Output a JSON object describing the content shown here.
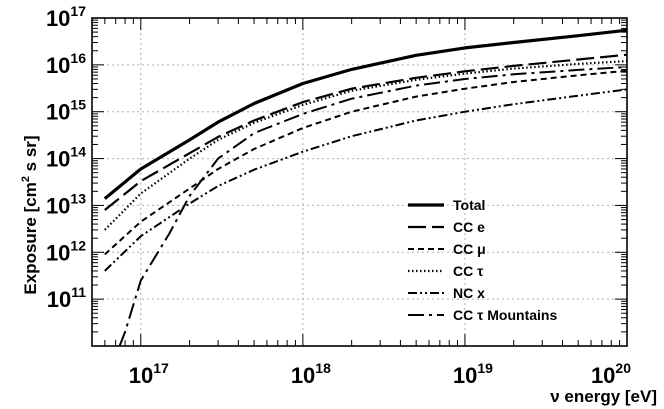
{
  "chart_data": {
    "type": "line",
    "xlabel": "ν energy [eV]",
    "ylabel_main": "Exposure [cm",
    "ylabel_sup": "2",
    "ylabel_tail": " s sr]",
    "x_scale": "log",
    "y_scale": "log",
    "xlim": [
      5e+16,
      1e+20
    ],
    "ylim": [
      10000000000.0,
      1e+17
    ],
    "grid": true,
    "legend_position": "bottom-right",
    "x_ticks": [
      {
        "base": "10",
        "exp": "17",
        "value": 1e+17
      },
      {
        "base": "10",
        "exp": "18",
        "value": 1e+18
      },
      {
        "base": "10",
        "exp": "19",
        "value": 1e+19
      },
      {
        "base": "10",
        "exp": "20",
        "value": 1e+20
      }
    ],
    "y_ticks": [
      {
        "base": "10",
        "exp": "11",
        "value": 100000000000.0
      },
      {
        "base": "10",
        "exp": "12",
        "value": 1000000000000.0
      },
      {
        "base": "10",
        "exp": "13",
        "value": 10000000000000.0
      },
      {
        "base": "10",
        "exp": "14",
        "value": 100000000000000.0
      },
      {
        "base": "10",
        "exp": "15",
        "value": 1000000000000000.0
      },
      {
        "base": "10",
        "exp": "16",
        "value": 1e+16
      },
      {
        "base": "10",
        "exp": "17",
        "value": 1e+17
      }
    ],
    "series": [
      {
        "name": "Total",
        "style": "solid",
        "x": [
          6e+16,
          1e+17,
          2e+17,
          3e+17,
          5e+17,
          1e+18,
          2e+18,
          5e+18,
          1e+19,
          2e+19,
          5e+19,
          1e+20
        ],
        "y": [
          14000000000000.0,
          60000000000000.0,
          250000000000000.0,
          600000000000000.0,
          1500000000000000.0,
          4000000000000000.0,
          8000000000000000.0,
          1.6e+16,
          2.3e+16,
          3e+16,
          4.2e+16,
          5.5e+16
        ]
      },
      {
        "name": "CC e",
        "style": "longdash",
        "x": [
          6e+16,
          1e+17,
          2e+17,
          3e+17,
          5e+17,
          1e+18,
          2e+18,
          5e+18,
          1e+19,
          2e+19,
          5e+19,
          1e+20
        ],
        "y": [
          8000000000000.0,
          33000000000000.0,
          130000000000000.0,
          290000000000000.0,
          650000000000000.0,
          1600000000000000.0,
          3100000000000000.0,
          5300000000000000.0,
          7300000000000000.0,
          9500000000000000.0,
          1.3e+16,
          1.65e+16
        ]
      },
      {
        "name": "CC μ",
        "style": "dash",
        "x": [
          6e+16,
          1e+17,
          2e+17,
          3e+17,
          5e+17,
          1e+18,
          2e+18,
          5e+18,
          1e+19,
          2e+19,
          5e+19,
          1e+20
        ],
        "y": [
          900000000000.0,
          4500000000000.0,
          23000000000000.0,
          60000000000000.0,
          160000000000000.0,
          450000000000000.0,
          1000000000000000.0,
          2100000000000000.0,
          3100000000000000.0,
          4300000000000000.0,
          6000000000000000.0,
          7500000000000000.0
        ]
      },
      {
        "name": "CC τ",
        "style": "dot",
        "x": [
          6e+16,
          1e+17,
          2e+17,
          3e+17,
          5e+17,
          1e+18,
          2e+18,
          5e+18,
          1e+19,
          2e+19,
          5e+19,
          1e+20
        ],
        "y": [
          3000000000000.0,
          18000000000000.0,
          100000000000000.0,
          250000000000000.0,
          580000000000000.0,
          1400000000000000.0,
          2800000000000000.0,
          4800000000000000.0,
          6500000000000000.0,
          8300000000000000.0,
          1.05e+16,
          1.2e+16
        ]
      },
      {
        "name": "NC x",
        "style": "dashdotdot",
        "x": [
          6e+16,
          1e+17,
          2e+17,
          3e+17,
          5e+17,
          1e+18,
          2e+18,
          5e+18,
          1e+19,
          2e+19,
          5e+19,
          1e+20
        ],
        "y": [
          400000000000.0,
          2200000000000.0,
          11000000000000.0,
          26000000000000.0,
          58000000000000.0,
          140000000000000.0,
          300000000000000.0,
          650000000000000.0,
          1000000000000000.0,
          1450000000000000.0,
          2200000000000000.0,
          3000000000000000.0
        ]
      },
      {
        "name": "CC τ Mountains",
        "style": "dashdot",
        "x": [
          7.4e+16,
          8e+16,
          1e+17,
          1.5e+17,
          2e+17,
          3e+17,
          5e+17,
          1e+18,
          2e+18,
          5e+18,
          1e+19,
          2e+19,
          5e+19,
          1e+20
        ],
        "y": [
          10000000000.0,
          20000000000.0,
          250000000000.0,
          2500000000000.0,
          16000000000000.0,
          100000000000000.0,
          350000000000000.0,
          900000000000000.0,
          1900000000000000.0,
          3600000000000000.0,
          5000000000000000.0,
          6300000000000000.0,
          7800000000000000.0,
          9000000000000000.0
        ]
      }
    ]
  }
}
